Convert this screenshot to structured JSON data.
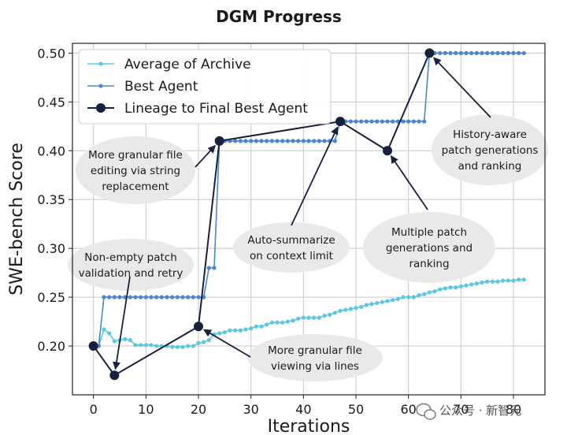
{
  "chart_data": {
    "type": "line",
    "title": "DGM Progress",
    "xlabel": "Iterations",
    "ylabel": "SWE-bench Score",
    "xlim": [
      -4,
      86
    ],
    "ylim": [
      0.15,
      0.51
    ],
    "xticks": [
      0,
      10,
      20,
      30,
      40,
      50,
      60,
      70,
      80
    ],
    "yticks": [
      0.2,
      0.25,
      0.3,
      0.35,
      0.4,
      0.45,
      0.5
    ],
    "grid": true,
    "legend_position": "top-left",
    "colors": {
      "average": "#5bc8e3",
      "best": "#4a86d4",
      "lineage": "#16213e"
    },
    "series": [
      {
        "name": "Average of Archive",
        "type": "line-markers",
        "x": [
          0,
          1,
          2,
          3,
          4,
          5,
          6,
          7,
          8,
          9,
          10,
          11,
          12,
          13,
          14,
          15,
          16,
          17,
          18,
          19,
          20,
          21,
          22,
          23,
          24,
          25,
          26,
          27,
          28,
          29,
          30,
          31,
          32,
          33,
          34,
          35,
          36,
          37,
          38,
          39,
          40,
          41,
          42,
          43,
          44,
          45,
          46,
          47,
          48,
          49,
          50,
          51,
          52,
          53,
          54,
          55,
          56,
          57,
          58,
          59,
          60,
          61,
          62,
          63,
          64,
          65,
          66,
          67,
          68,
          69,
          70,
          71,
          72,
          73,
          74,
          75,
          76,
          77,
          78,
          79,
          80,
          81,
          82
        ],
        "y": [
          0.2,
          0.2,
          0.217,
          0.213,
          0.205,
          0.206,
          0.207,
          0.206,
          0.201,
          0.201,
          0.201,
          0.201,
          0.2,
          0.2,
          0.2,
          0.199,
          0.199,
          0.199,
          0.2,
          0.2,
          0.203,
          0.204,
          0.206,
          0.212,
          0.213,
          0.214,
          0.216,
          0.216,
          0.216,
          0.217,
          0.218,
          0.22,
          0.22,
          0.222,
          0.224,
          0.224,
          0.224,
          0.225,
          0.226,
          0.228,
          0.229,
          0.229,
          0.229,
          0.229,
          0.231,
          0.232,
          0.234,
          0.236,
          0.237,
          0.238,
          0.239,
          0.24,
          0.242,
          0.243,
          0.244,
          0.245,
          0.246,
          0.247,
          0.248,
          0.25,
          0.25,
          0.25,
          0.252,
          0.253,
          0.255,
          0.256,
          0.258,
          0.259,
          0.26,
          0.26,
          0.261,
          0.262,
          0.263,
          0.264,
          0.265,
          0.266,
          0.266,
          0.266,
          0.267,
          0.267,
          0.267,
          0.268,
          0.268
        ]
      },
      {
        "name": "Best Agent",
        "type": "line-markers",
        "x": [
          0,
          1,
          2,
          3,
          4,
          5,
          6,
          7,
          8,
          9,
          10,
          11,
          12,
          13,
          14,
          15,
          16,
          17,
          18,
          19,
          20,
          21,
          22,
          23,
          24,
          25,
          26,
          27,
          28,
          29,
          30,
          31,
          32,
          33,
          34,
          35,
          36,
          37,
          38,
          39,
          40,
          41,
          42,
          43,
          44,
          45,
          46,
          47,
          48,
          49,
          50,
          51,
          52,
          53,
          54,
          55,
          56,
          57,
          58,
          59,
          60,
          61,
          62,
          63,
          64,
          65,
          66,
          67,
          68,
          69,
          70,
          71,
          72,
          73,
          74,
          75,
          76,
          77,
          78,
          79,
          80,
          81,
          82
        ],
        "y": [
          0.2,
          0.2,
          0.25,
          0.25,
          0.25,
          0.25,
          0.25,
          0.25,
          0.25,
          0.25,
          0.25,
          0.25,
          0.25,
          0.25,
          0.25,
          0.25,
          0.25,
          0.25,
          0.25,
          0.25,
          0.25,
          0.25,
          0.28,
          0.28,
          0.41,
          0.41,
          0.41,
          0.41,
          0.41,
          0.41,
          0.41,
          0.41,
          0.41,
          0.41,
          0.41,
          0.41,
          0.41,
          0.41,
          0.41,
          0.41,
          0.41,
          0.41,
          0.41,
          0.41,
          0.41,
          0.41,
          0.41,
          0.43,
          0.43,
          0.43,
          0.43,
          0.43,
          0.43,
          0.43,
          0.43,
          0.43,
          0.43,
          0.43,
          0.43,
          0.43,
          0.43,
          0.43,
          0.43,
          0.43,
          0.5,
          0.5,
          0.5,
          0.5,
          0.5,
          0.5,
          0.5,
          0.5,
          0.5,
          0.5,
          0.5,
          0.5,
          0.5,
          0.5,
          0.5,
          0.5,
          0.5,
          0.5,
          0.5
        ]
      },
      {
        "name": "Lineage to Final Best Agent",
        "type": "line-points",
        "x": [
          0,
          4,
          20,
          24,
          47,
          56,
          64
        ],
        "y": [
          0.2,
          0.17,
          0.22,
          0.41,
          0.43,
          0.4,
          0.5
        ]
      }
    ],
    "annotations": [
      {
        "text": "Non-empty patch validation and retry",
        "lines": [
          "Non-empty patch",
          "validation and retry"
        ],
        "target": [
          4,
          0.17
        ]
      },
      {
        "text": "More granular file editing via string replacement",
        "lines": [
          "More granular file",
          "editing via string",
          "replacement"
        ],
        "target": [
          24,
          0.41
        ]
      },
      {
        "text": "More granular file viewing via lines",
        "lines": [
          "More granular file",
          "viewing via lines"
        ],
        "target": [
          20,
          0.22
        ]
      },
      {
        "text": "Auto-summarize on context limit",
        "lines": [
          "Auto-summarize",
          "on context limit"
        ],
        "target": [
          47,
          0.43
        ]
      },
      {
        "text": "Multiple patch generations and ranking",
        "lines": [
          "Multiple patch",
          "generations and",
          "ranking"
        ],
        "target": [
          56,
          0.4
        ]
      },
      {
        "text": "History-aware patch generations and ranking",
        "lines": [
          "History-aware",
          "patch generations",
          "and ranking"
        ],
        "target": [
          64,
          0.5
        ]
      }
    ]
  },
  "watermark": {
    "icon": "wechat-icon",
    "text": "公众号 · 新智元"
  }
}
